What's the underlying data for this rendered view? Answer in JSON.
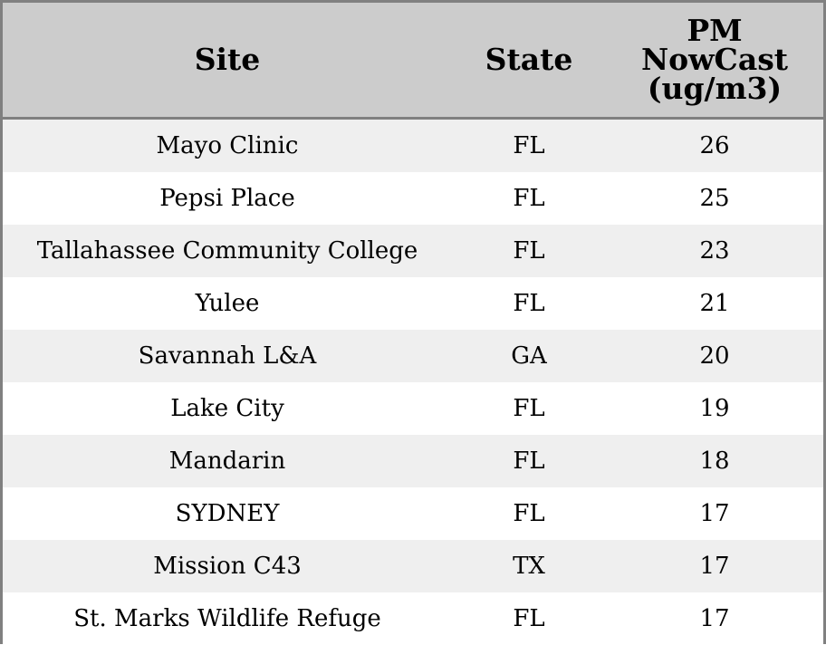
{
  "chart_data": {
    "type": "table",
    "columns": [
      "Site",
      "State",
      "PM\nNowCast\n(ug/m3)"
    ],
    "rows": [
      [
        "Mayo Clinic",
        "FL",
        26
      ],
      [
        "Pepsi Place",
        "FL",
        25
      ],
      [
        "Tallahassee Community College",
        "FL",
        23
      ],
      [
        "Yulee",
        "FL",
        21
      ],
      [
        "Savannah L&A",
        "GA",
        20
      ],
      [
        "Lake City",
        "FL",
        19
      ],
      [
        "Mandarin",
        "FL",
        18
      ],
      [
        "SYDNEY",
        "FL",
        17
      ],
      [
        "Mission C43",
        "TX",
        17
      ],
      [
        "St. Marks Wildlife Refuge",
        "FL",
        17
      ]
    ]
  },
  "colors": {
    "header_bg": "#cccccc",
    "row_alt_bg": "#efefef",
    "row_bg": "#ffffff",
    "border": "#808080"
  }
}
